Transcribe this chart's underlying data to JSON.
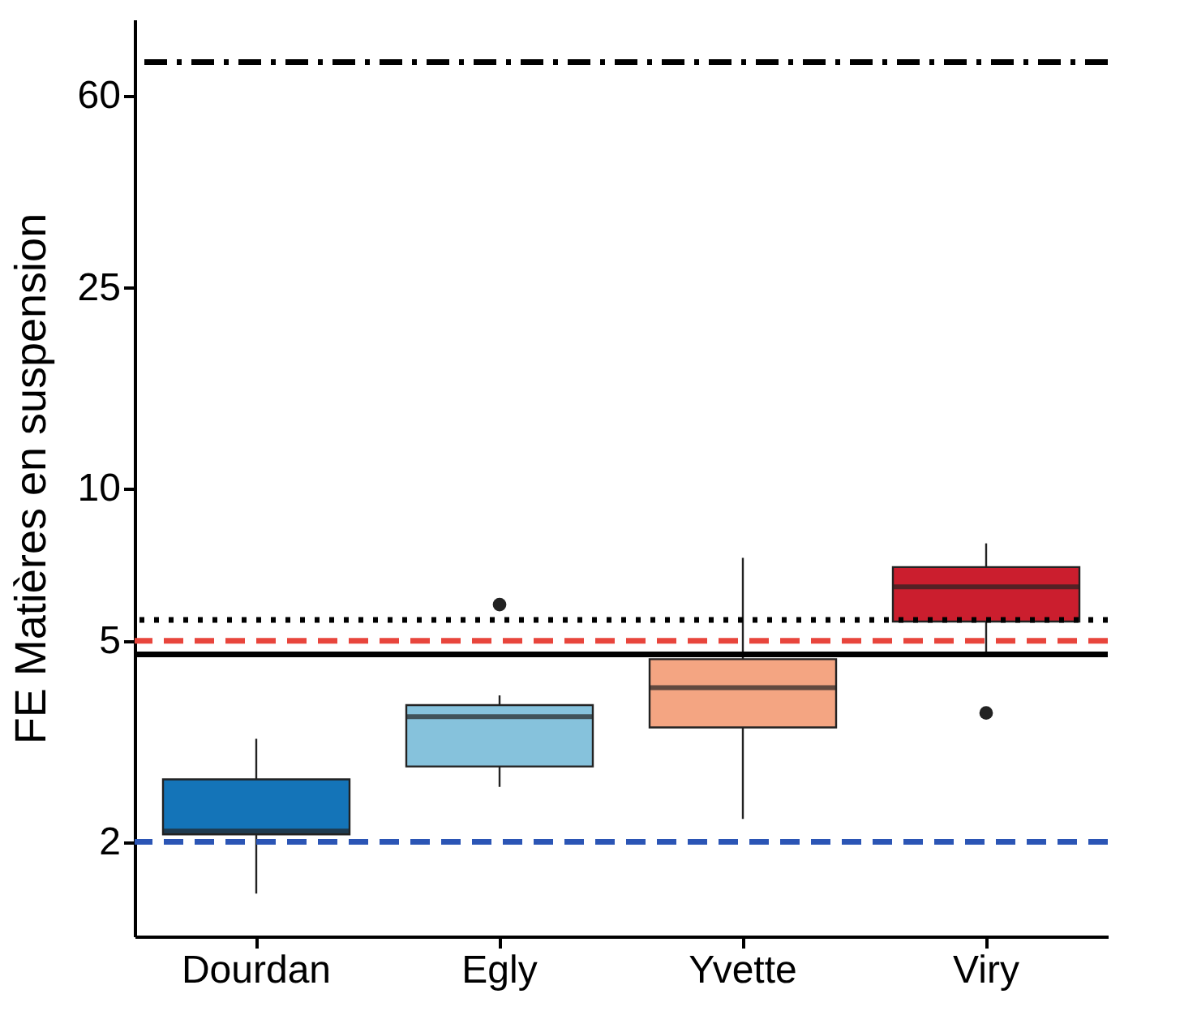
{
  "chart_data": {
    "type": "box",
    "ylabel": "FE Matières en suspension",
    "categories": [
      "Dourdan",
      "Egly",
      "Yvette",
      "Viry"
    ],
    "colors": [
      "#1474b8",
      "#86c2dc",
      "#f4a582",
      "#cb1e2e"
    ],
    "boxes": [
      {
        "low": 1.58,
        "q1": 2.07,
        "median": 2.1,
        "q3": 2.66,
        "high": 3.2
      },
      {
        "low": 2.57,
        "q1": 2.82,
        "median": 3.54,
        "q3": 3.73,
        "high": 3.9,
        "outliers": [
          5.9
        ]
      },
      {
        "low": 2.22,
        "q1": 3.37,
        "median": 4.04,
        "q3": 4.6,
        "high": 7.3
      },
      {
        "low": 4.7,
        "q1": 5.46,
        "median": 6.4,
        "q3": 7.0,
        "high": 7.8,
        "outliers": [
          3.6
        ]
      }
    ],
    "log": true,
    "ylim": [
      1.3,
      85
    ],
    "yticks": [
      2,
      5,
      10,
      25,
      60
    ],
    "grid": false,
    "ref_lines": [
      {
        "axis": "y",
        "value": 70,
        "color": "#000000",
        "line_style": "dashdot"
      },
      {
        "axis": "y",
        "value": 5.5,
        "color": "#000000",
        "line_style": "dotted"
      },
      {
        "axis": "y",
        "value": 5,
        "color": "#e8453c",
        "line_style": "dashed"
      },
      {
        "axis": "y",
        "value": 4.7,
        "color": "#000000",
        "line_style": "solid"
      },
      {
        "axis": "y",
        "value": 2,
        "color": "#2b55b5",
        "line_style": "dashed"
      }
    ]
  }
}
